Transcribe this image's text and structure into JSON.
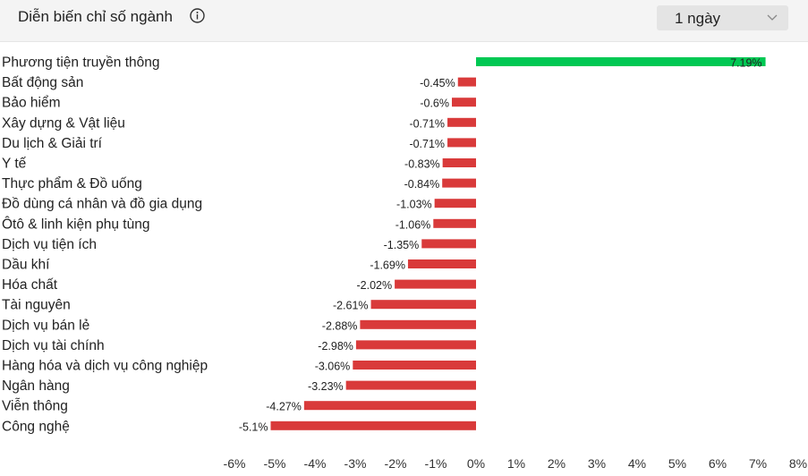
{
  "header": {
    "title": "Diễn biến chỉ số ngành",
    "period": {
      "selected": "1 ngày"
    }
  },
  "colors": {
    "positive": "#00c853",
    "negative": "#d93a3a"
  },
  "chart_data": {
    "type": "bar",
    "orientation": "horizontal",
    "categories": [
      "Phương tiện truyền thông",
      "Bất động sản",
      "Bảo hiểm",
      "Xây dựng & Vật liệu",
      "Du lịch & Giải trí",
      "Y tế",
      "Thực phẩm & Đồ uống",
      "Đồ dùng cá nhân và đồ gia dụng",
      "Ôtô & linh kiện phụ tùng",
      "Dịch vụ tiện ích",
      "Dầu khí",
      "Hóa chất",
      "Tài nguyên",
      "Dịch vụ bán lẻ",
      "Dịch vụ tài chính",
      "Hàng hóa và dịch vụ công nghiệp",
      "Ngân hàng",
      "Viễn thông",
      "Công nghệ"
    ],
    "values": [
      7.19,
      -0.45,
      -0.6,
      -0.71,
      -0.71,
      -0.83,
      -0.84,
      -1.03,
      -1.06,
      -1.35,
      -1.69,
      -2.02,
      -2.61,
      -2.88,
      -2.98,
      -3.06,
      -3.23,
      -4.27,
      -5.1
    ],
    "value_labels": [
      "7.19%",
      "-0.45%",
      "-0.6%",
      "-0.71%",
      "-0.71%",
      "-0.83%",
      "-0.84%",
      "-1.03%",
      "-1.06%",
      "-1.35%",
      "-1.69%",
      "-2.02%",
      "-2.61%",
      "-2.88%",
      "-2.98%",
      "-3.06%",
      "-3.23%",
      "-4.27%",
      "-5.1%"
    ],
    "xlim": [
      -6,
      8
    ],
    "xticks": [
      -6,
      -5,
      -4,
      -3,
      -2,
      -1,
      0,
      1,
      2,
      3,
      4,
      5,
      6,
      7,
      8
    ],
    "xtick_labels": [
      "-6%",
      "-5%",
      "-4%",
      "-3%",
      "-2%",
      "-1%",
      "0%",
      "1%",
      "2%",
      "3%",
      "4%",
      "5%",
      "6%",
      "7%",
      "8%"
    ],
    "grid": false,
    "legend": "none"
  }
}
